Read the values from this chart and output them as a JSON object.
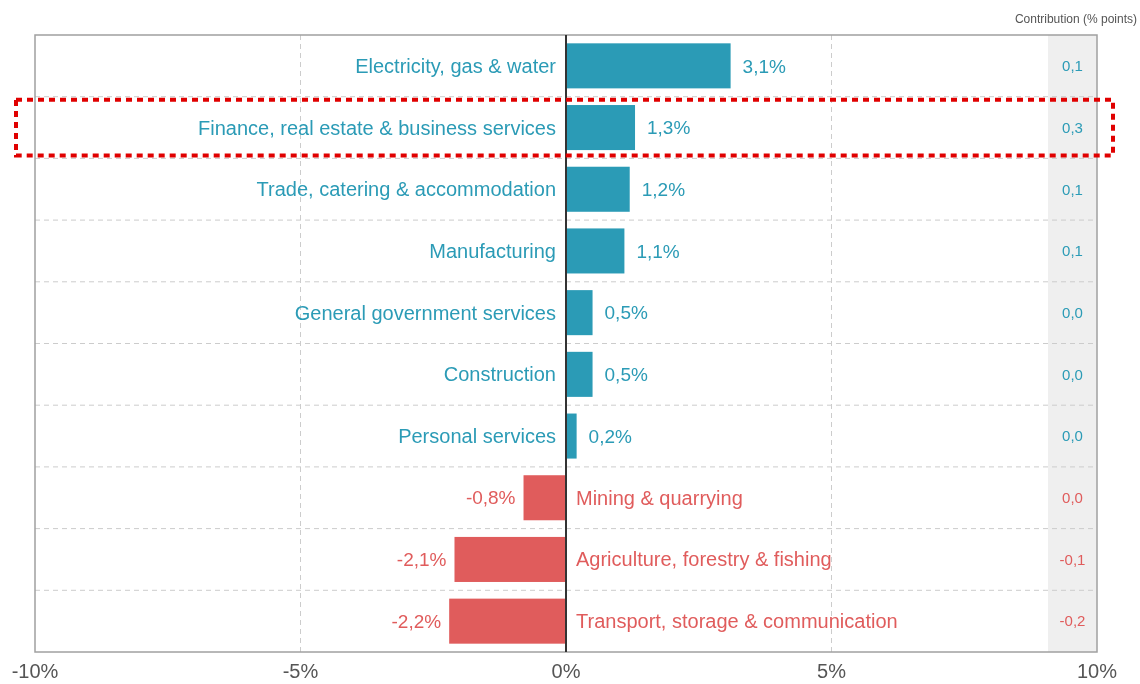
{
  "chart_data": {
    "type": "bar",
    "orientation": "horizontal",
    "categories": [
      "Electricity, gas & water",
      "Finance, real estate & business services",
      "Trade, catering & accommodation",
      "Manufacturing",
      "General government services",
      "Construction",
      "Personal services",
      "Mining & quarrying",
      "Agriculture, forestry & fishing",
      "Transport, storage & communication"
    ],
    "values": [
      3.1,
      1.3,
      1.2,
      1.1,
      0.5,
      0.5,
      0.2,
      -0.8,
      -2.1,
      -2.2
    ],
    "value_labels": [
      "3,1%",
      "1,3%",
      "1,2%",
      "1,1%",
      "0,5%",
      "0,5%",
      "0,2%",
      "-0,8%",
      "-2,1%",
      "-2,2%"
    ],
    "colors": [
      "#2b9bb6",
      "#2b9bb6",
      "#2b9bb6",
      "#2b9bb6",
      "#2b9bb6",
      "#2b9bb6",
      "#2b9bb6",
      "#e05c5c",
      "#e05c5c",
      "#e05c5c"
    ],
    "xlim": [
      -10,
      10
    ],
    "xticks": [
      {
        "value": -10,
        "label": "-10%"
      },
      {
        "value": -5,
        "label": "-5%"
      },
      {
        "value": 0,
        "label": "0%"
      },
      {
        "value": 5,
        "label": "5%"
      },
      {
        "value": 10,
        "label": "10%"
      }
    ],
    "grid": true,
    "annotations": [
      "Contribution (% points)",
      "0,1",
      "0,3",
      "0,1",
      "0,1",
      "0,0",
      "0,0",
      "0,0",
      "0,0",
      "-0,1",
      "-0,2"
    ]
  }
}
